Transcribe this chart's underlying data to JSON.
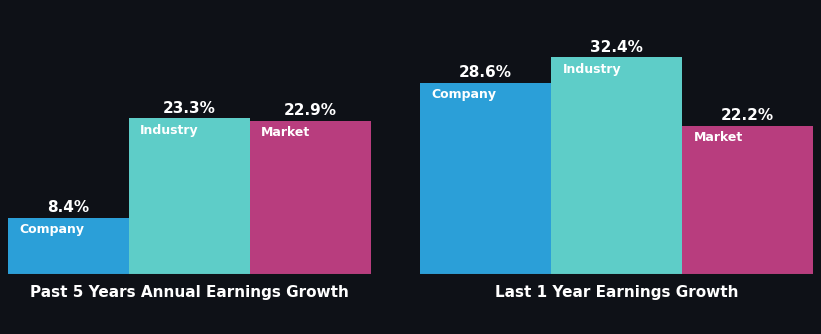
{
  "background_color": "#0e1117",
  "groups": [
    {
      "title": "Past 5 Years Annual Earnings Growth",
      "bars": [
        {
          "label": "Company",
          "value": 8.4,
          "color": "#2b9fd8"
        },
        {
          "label": "Industry",
          "value": 23.3,
          "color": "#5ecdc8"
        },
        {
          "label": "Market",
          "value": 22.9,
          "color": "#b83d7e"
        }
      ]
    },
    {
      "title": "Last 1 Year Earnings Growth",
      "bars": [
        {
          "label": "Company",
          "value": 28.6,
          "color": "#2b9fd8"
        },
        {
          "label": "Industry",
          "value": 32.4,
          "color": "#5ecdc8"
        },
        {
          "label": "Market",
          "value": 22.2,
          "color": "#b83d7e"
        }
      ]
    }
  ],
  "value_fontsize": 11,
  "label_fontsize": 9,
  "title_fontsize": 11,
  "value_color": "#ffffff",
  "label_color": "#ffffff",
  "title_color": "#ffffff",
  "ylim": [
    0,
    37
  ],
  "baseline_color": "#555555"
}
